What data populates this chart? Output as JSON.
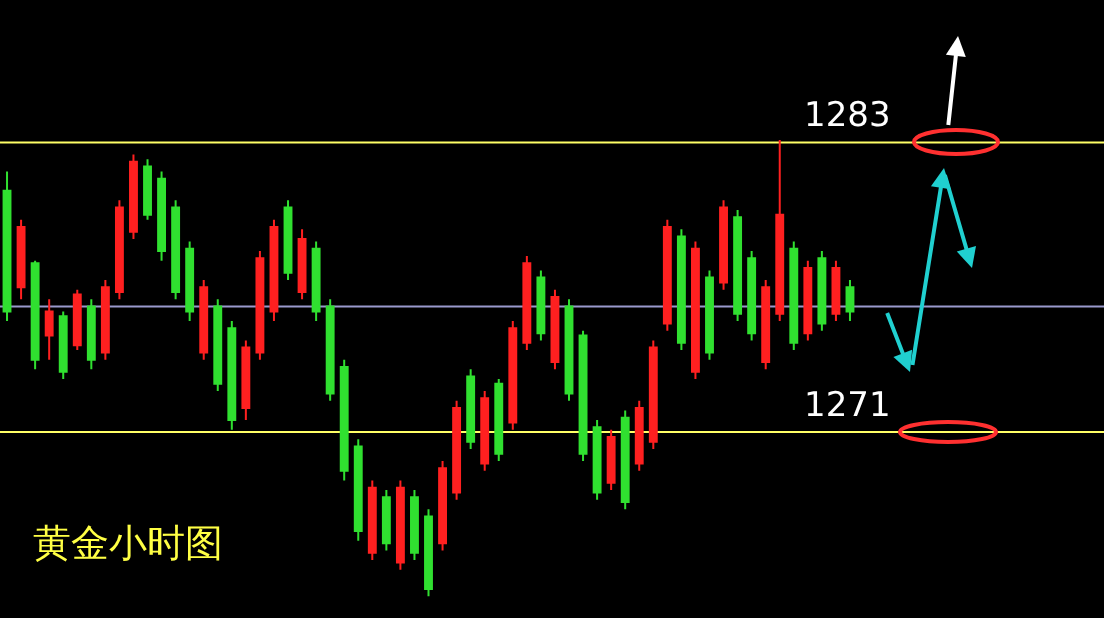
{
  "chart_data": {
    "type": "candlestick",
    "title": "黄金小时图",
    "categories": [
      null,
      null,
      null,
      null,
      null,
      null,
      null,
      null,
      null,
      null,
      null,
      null,
      null,
      null,
      null,
      null,
      null,
      null,
      null,
      null,
      null,
      null,
      null,
      null,
      null,
      null,
      null,
      null,
      null,
      null,
      null,
      null,
      null,
      null,
      null,
      null,
      null,
      null,
      null,
      null,
      null,
      null,
      null,
      null,
      null,
      null,
      null,
      null,
      null,
      null,
      null,
      null,
      null,
      null,
      null,
      null,
      null,
      null,
      null,
      null,
      null
    ],
    "ohlc": [
      [
        1281,
        1281.8,
        1275.6,
        1276
      ],
      [
        1277,
        1279.8,
        1276.5,
        1279.5
      ],
      [
        1278,
        1278.1,
        1273.6,
        1274
      ],
      [
        1275,
        1276.5,
        1274.0,
        1276
      ],
      [
        1275.8,
        1276.0,
        1273.2,
        1273.5
      ],
      [
        1274.6,
        1276.9,
        1274.4,
        1276.7
      ],
      [
        1276.2,
        1276.5,
        1273.6,
        1274
      ],
      [
        1274.3,
        1277.3,
        1274.0,
        1277
      ],
      [
        1276.8,
        1280.6,
        1276.5,
        1280.3
      ],
      [
        1279.3,
        1282.5,
        1279.0,
        1282.2
      ],
      [
        1282,
        1282.3,
        1279.8,
        1280
      ],
      [
        1281.5,
        1281.8,
        1278.1,
        1278.5
      ],
      [
        1280.3,
        1280.6,
        1276.5,
        1276.8
      ],
      [
        1278.6,
        1278.9,
        1275.6,
        1276
      ],
      [
        1274.3,
        1277.3,
        1274.0,
        1277
      ],
      [
        1276.2,
        1276.5,
        1272.7,
        1273
      ],
      [
        1275.3,
        1275.6,
        1271.1,
        1271.5
      ],
      [
        1272,
        1274.8,
        1271.5,
        1274.5
      ],
      [
        1274.3,
        1278.5,
        1274.0,
        1278.2
      ],
      [
        1276,
        1279.8,
        1275.6,
        1279.5
      ],
      [
        1280.3,
        1280.6,
        1277.3,
        1277.6
      ],
      [
        1276.8,
        1279.4,
        1276.5,
        1279
      ],
      [
        1278.6,
        1278.9,
        1275.6,
        1276
      ],
      [
        1276.2,
        1276.5,
        1272.3,
        1272.6
      ],
      [
        1273.7,
        1274.0,
        1269.0,
        1269.4
      ],
      [
        1270.4,
        1270.7,
        1266.5,
        1266.9
      ],
      [
        1266,
        1269.0,
        1265.7,
        1268.7
      ],
      [
        1268.3,
        1268.6,
        1266.1,
        1266.4
      ],
      [
        1265.6,
        1269.0,
        1265.3,
        1268.7
      ],
      [
        1268.3,
        1268.6,
        1265.7,
        1266
      ],
      [
        1267.5,
        1267.8,
        1264.2,
        1264.5
      ],
      [
        1266.4,
        1269.8,
        1266.1,
        1269.5
      ],
      [
        1268.5,
        1272.3,
        1268.2,
        1272
      ],
      [
        1273.3,
        1273.6,
        1270.3,
        1270.6
      ],
      [
        1269.7,
        1272.7,
        1269.4,
        1272.4
      ],
      [
        1273,
        1273.2,
        1269.8,
        1270.1
      ],
      [
        1271.4,
        1275.6,
        1271.1,
        1275.3
      ],
      [
        1274.7,
        1278.3,
        1274.4,
        1278
      ],
      [
        1277.4,
        1277.7,
        1274.8,
        1275.1
      ],
      [
        1273.9,
        1276.9,
        1273.6,
        1276.6
      ],
      [
        1276.2,
        1276.5,
        1272.3,
        1272.6
      ],
      [
        1275,
        1275.2,
        1269.8,
        1270.1
      ],
      [
        1271.2,
        1271.5,
        1268.2,
        1268.5
      ],
      [
        1268.9,
        1271.1,
        1268.6,
        1270.8
      ],
      [
        1271.6,
        1271.9,
        1267.8,
        1268.1
      ],
      [
        1269.7,
        1272.3,
        1269.4,
        1272
      ],
      [
        1270.6,
        1274.8,
        1270.3,
        1274.5
      ],
      [
        1275.5,
        1279.8,
        1275.2,
        1279.5
      ],
      [
        1279.1,
        1279.4,
        1274.4,
        1274.7
      ],
      [
        1273.5,
        1278.9,
        1273.2,
        1278.6
      ],
      [
        1277.4,
        1277.7,
        1274.0,
        1274.3
      ],
      [
        1277.2,
        1280.6,
        1276.9,
        1280.3
      ],
      [
        1279.9,
        1280.2,
        1275.6,
        1275.9
      ],
      [
        1278.2,
        1278.5,
        1274.8,
        1275.1
      ],
      [
        1273.9,
        1277.3,
        1273.6,
        1277
      ],
      [
        1275.9,
        1283.1,
        1275.6,
        1280
      ],
      [
        1278.6,
        1278.9,
        1274.4,
        1274.7
      ],
      [
        1275.1,
        1278.1,
        1274.8,
        1277.8
      ],
      [
        1278.2,
        1278.5,
        1275.2,
        1275.5
      ],
      [
        1275.9,
        1278.1,
        1275.6,
        1277.8
      ],
      [
        1277,
        1277.3,
        1275.6,
        1276
      ]
    ],
    "ylim": [
      1263.3,
      1288.9
    ],
    "tick_labels": false,
    "grid": false,
    "colors": [
      "#30e030",
      "#ff2020",
      "#30e030",
      "#ff2020",
      "#30e030",
      "#ff2020",
      "#30e030",
      "#ff2020",
      "#ff2020",
      "#ff2020",
      "#30e030",
      "#30e030",
      "#30e030",
      "#30e030",
      "#ff2020",
      "#30e030",
      "#30e030",
      "#ff2020",
      "#ff2020",
      "#ff2020",
      "#30e030",
      "#ff2020",
      "#30e030",
      "#30e030",
      "#30e030",
      "#30e030",
      "#ff2020",
      "#30e030",
      "#ff2020",
      "#30e030",
      "#30e030",
      "#ff2020",
      "#ff2020",
      "#30e030",
      "#ff2020",
      "#30e030",
      "#ff2020",
      "#ff2020",
      "#30e030",
      "#ff2020",
      "#30e030",
      "#30e030",
      "#30e030",
      "#ff2020",
      "#30e030",
      "#ff2020",
      "#ff2020",
      "#ff2020",
      "#30e030",
      "#ff2020",
      "#30e030",
      "#ff2020",
      "#30e030",
      "#30e030",
      "#ff2020",
      "#ff2020",
      "#30e030",
      "#ff2020",
      "#30e030",
      "#ff2020",
      "#30e030"
    ],
    "ref_lines": [
      {
        "axis": "y",
        "value": 1283,
        "label": "1283",
        "color": "#ffff66"
      },
      {
        "axis": "y",
        "value": 1271,
        "label": "1271",
        "color": "#ffff66"
      },
      {
        "axis": "y",
        "value": 1276.2,
        "label": null,
        "color": "#9999cc"
      }
    ]
  }
}
